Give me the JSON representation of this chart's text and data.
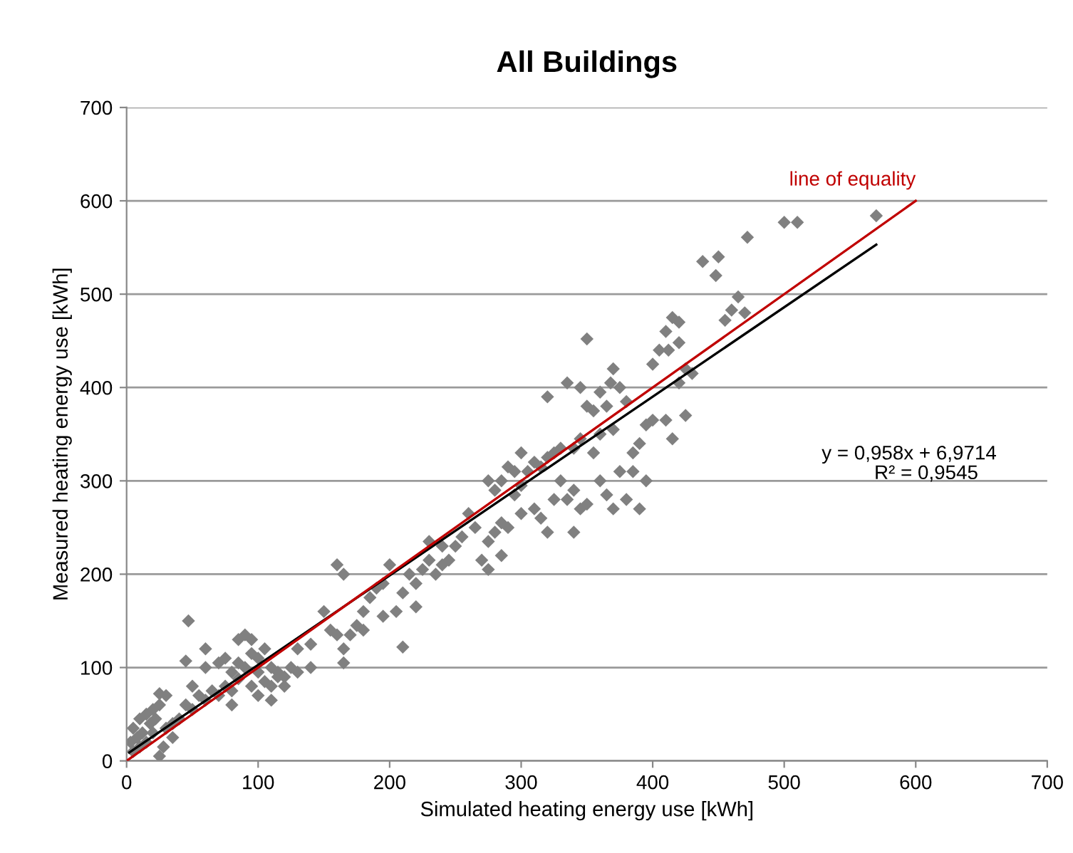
{
  "chart_data": {
    "type": "scatter",
    "title": "All Buildings",
    "xlabel": "Simulated heating energy use [kWh]",
    "ylabel": "Measured heating energy use [kWh]",
    "xlim": [
      0,
      700
    ],
    "ylim": [
      0,
      700
    ],
    "xticks": [
      0,
      100,
      200,
      300,
      400,
      500,
      600,
      700
    ],
    "yticks": [
      0,
      100,
      200,
      300,
      400,
      500,
      600,
      700
    ],
    "grid": "y",
    "annotations": [
      "y = 0,958x + 6,9714",
      "R² = 0,9545"
    ],
    "series": [
      {
        "color": "#808080",
        "marker": "diamond",
        "x": [
          570,
          500,
          510,
          472,
          438,
          450,
          448,
          465,
          470,
          460,
          455,
          420,
          415,
          410,
          412,
          420,
          405,
          400,
          350,
          345,
          360,
          370,
          368,
          375,
          380,
          365,
          350,
          355,
          335,
          320,
          425,
          430,
          420,
          425,
          415,
          410,
          400,
          395,
          390,
          385,
          370,
          360,
          355,
          345,
          340,
          330,
          325,
          320,
          310,
          300,
          295,
          290,
          285,
          280,
          275,
          300,
          305,
          315,
          330,
          335,
          325,
          340,
          345,
          350,
          360,
          365,
          370,
          380,
          390,
          375,
          385,
          395,
          340,
          320,
          315,
          310,
          300,
          295,
          290,
          285,
          280,
          275,
          270,
          275,
          285,
          260,
          265,
          255,
          250,
          245,
          240,
          235,
          230,
          225,
          220,
          215,
          210,
          200,
          195,
          190,
          185,
          180,
          175,
          170,
          180,
          195,
          205,
          210,
          220,
          230,
          240,
          160,
          165,
          150,
          155,
          160,
          165,
          165,
          140,
          130,
          125,
          120,
          115,
          110,
          105,
          100,
          95,
          90,
          85,
          80,
          90,
          85,
          95,
          100,
          110,
          75,
          70,
          60,
          65,
          70,
          75,
          80,
          50,
          55,
          60,
          50,
          45,
          40,
          47,
          45,
          35,
          30,
          25,
          20,
          15,
          10,
          5,
          30,
          25,
          20,
          15,
          10,
          5,
          12,
          18,
          22,
          8,
          3,
          28,
          25,
          35,
          130,
          120,
          115,
          140,
          60,
          80,
          85,
          95,
          100,
          105,
          110
        ],
        "values": [
          584,
          577,
          577,
          561,
          535,
          540,
          520,
          497,
          480,
          483,
          472,
          470,
          475,
          460,
          440,
          448,
          440,
          425,
          452,
          400,
          395,
          420,
          405,
          400,
          385,
          380,
          380,
          375,
          405,
          390,
          420,
          415,
          405,
          370,
          345,
          365,
          365,
          360,
          340,
          330,
          355,
          350,
          330,
          345,
          335,
          335,
          330,
          325,
          320,
          330,
          310,
          315,
          300,
          290,
          300,
          295,
          310,
          315,
          300,
          280,
          280,
          290,
          270,
          275,
          300,
          285,
          270,
          280,
          270,
          310,
          310,
          300,
          245,
          245,
          260,
          270,
          265,
          285,
          250,
          255,
          245,
          235,
          215,
          205,
          220,
          265,
          250,
          240,
          230,
          215,
          210,
          200,
          215,
          205,
          190,
          200,
          180,
          210,
          190,
          185,
          175,
          160,
          145,
          135,
          140,
          155,
          160,
          122,
          165,
          235,
          230,
          210,
          200,
          160,
          140,
          135,
          120,
          105,
          125,
          120,
          100,
          90,
          95,
          100,
          120,
          110,
          115,
          100,
          105,
          95,
          135,
          130,
          130,
          70,
          65,
          110,
          105,
          100,
          75,
          70,
          80,
          75,
          80,
          70,
          65,
          55,
          60,
          45,
          150,
          107,
          40,
          35,
          60,
          55,
          50,
          45,
          35,
          70,
          72,
          30,
          20,
          15,
          10,
          30,
          40,
          45,
          25,
          20,
          15,
          5,
          25,
          95,
          80,
          90,
          100,
          120,
          60,
          88,
          80,
          95,
          85,
          80
        ]
      },
      {
        "type": "line",
        "marker": "none",
        "color": "#000000",
        "x": [
          2,
          570
        ],
        "values": [
          9,
          553
        ]
      },
      {
        "type": "line",
        "marker": "none",
        "name": "line of equality",
        "color": "#c00000",
        "x": [
          0,
          600
        ],
        "values": [
          0,
          600
        ]
      }
    ]
  }
}
